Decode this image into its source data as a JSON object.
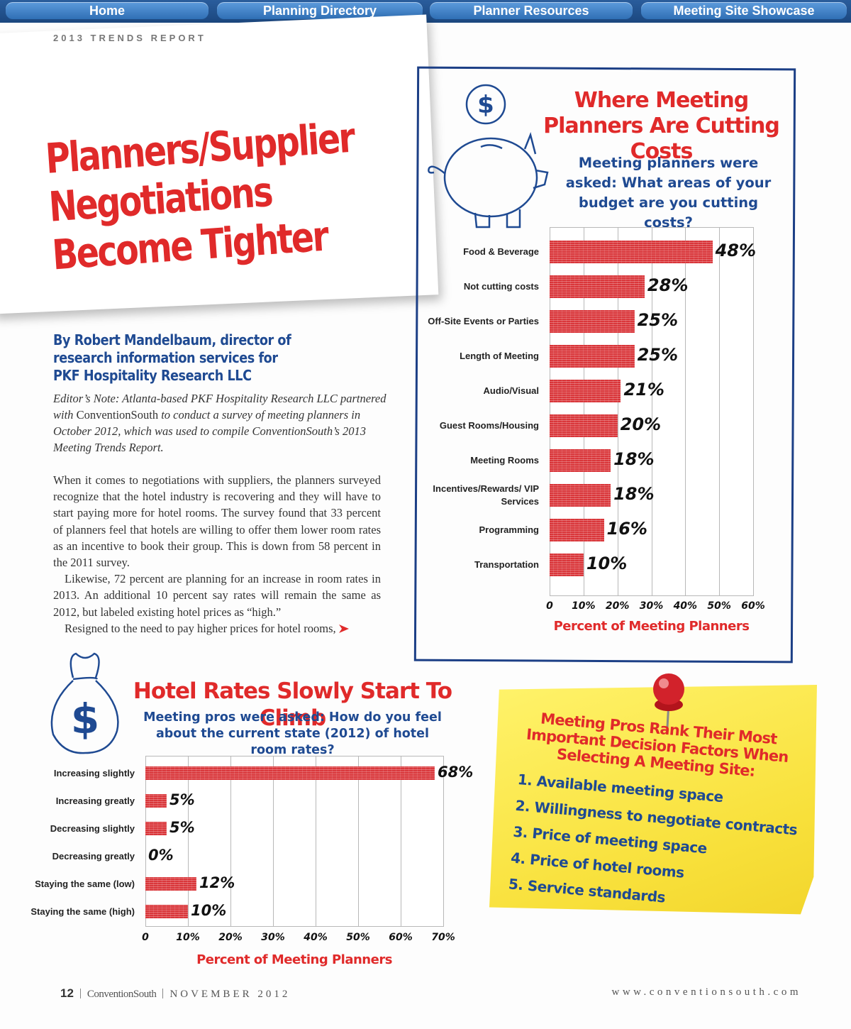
{
  "nav": [
    "Home",
    "Planning Directory",
    "Planner Resources",
    "Meeting Site Showcase"
  ],
  "header": "2013 TRENDS REPORT",
  "headline": [
    "Planners/Supplier",
    "Negotiations",
    "Become Tighter"
  ],
  "byline": [
    "By Robert Mandelbaum, director of",
    "research information services for",
    "PKF Hospitality Research LLC"
  ],
  "editor_note": [
    "Editor’s Note: Atlanta-based PKF Hospitality Research LLC partnered with ",
    "ConventionSouth",
    " to conduct a survey of meeting planners in October 2012, which was used to compile ConventionSouth’s 2013 Meeting Trends Report."
  ],
  "body": [
    "When it comes to negotiations with suppliers, the planners surveyed recognize that the hotel industry is recovering and they will have to start paying more for hotel rooms. The survey found that 33 percent of planners feel that hotels are willing to offer them lower room rates as an incentive to book their group. This is down from 58 percent in the 2011 survey.",
    "Likewise, 72 percent are planning for an increase in room rates in 2013. An additional 10 percent say rates will remain the same as 2012, but labeled existing hotel prices as “high.”",
    "Resigned to the need to pay higher prices for hotel rooms,"
  ],
  "chart_data": [
    {
      "type": "bar",
      "orientation": "horizontal",
      "title": "Where Meeting Planners Are Cutting Costs",
      "subtitle": "Meeting planners were asked: What areas of your budget are you cutting costs?",
      "categories": [
        "Food & Beverage",
        "Not cutting costs",
        "Off-Site Events or Parties",
        "Length of Meeting",
        "Audio/Visual",
        "Guest Rooms/Housing",
        "Meeting Rooms",
        "Incentives/Rewards/ VIP Services",
        "Programming",
        "Transportation"
      ],
      "values": [
        48,
        28,
        25,
        25,
        21,
        20,
        18,
        18,
        16,
        10
      ],
      "value_labels": [
        "48%",
        "28%",
        "25%",
        "25%",
        "21%",
        "20%",
        "18%",
        "18%",
        "16%",
        "10%"
      ],
      "color": "#d9363a",
      "grid": true,
      "xlim": [
        0,
        60
      ],
      "xticks": [
        0,
        {
          "value": 10,
          "label": "10%"
        },
        {
          "value": 20,
          "label": "20%"
        },
        {
          "value": 30,
          "label": "30%"
        },
        {
          "value": 40,
          "label": "40%"
        },
        {
          "value": 50,
          "label": "50%"
        },
        {
          "value": 60,
          "label": "60%"
        }
      ],
      "xlabel": "Percent of Meeting Planners"
    },
    {
      "type": "bar",
      "orientation": "horizontal",
      "title": "Hotel Rates Slowly Start To Climb",
      "subtitle": "Meeting pros were asked: How do you feel about the current state (2012) of hotel room rates?",
      "categories": [
        "Increasing slightly",
        "Increasing greatly",
        "Decreasing slightly",
        "Decreasing greatly",
        "Staying the same (low)",
        "Staying the same (high)"
      ],
      "values": [
        68,
        5,
        5,
        0,
        12,
        10
      ],
      "value_labels": [
        "68%",
        "5%",
        "5%",
        "0%",
        "12%",
        "10%"
      ],
      "color": "#d9363a",
      "grid": true,
      "xlim": [
        0,
        70
      ],
      "xticks": [
        0,
        {
          "value": 10,
          "label": "10%"
        },
        {
          "value": 20,
          "label": "20%"
        },
        {
          "value": 30,
          "label": "30%"
        },
        {
          "value": 40,
          "label": "40%"
        },
        {
          "value": 50,
          "label": "50%"
        },
        {
          "value": 60,
          "label": "60%"
        },
        {
          "value": 70,
          "label": "70%"
        }
      ],
      "xlabel": "Percent of Meeting Planners"
    }
  ],
  "sticky_note": {
    "title": "Meeting Pros Rank Their Most Important Decision Factors When Selecting A Meeting Site:",
    "items": [
      "1. Available meeting space",
      "2. Willingness to negotiate contracts",
      "3. Price of meeting space",
      "4. Price of hotel rooms",
      "5. Service standards"
    ]
  },
  "footer": {
    "page": "12",
    "publication": "ConventionSouth",
    "issue": "NOVEMBER 2012",
    "url": "www.conventionsouth.com"
  }
}
